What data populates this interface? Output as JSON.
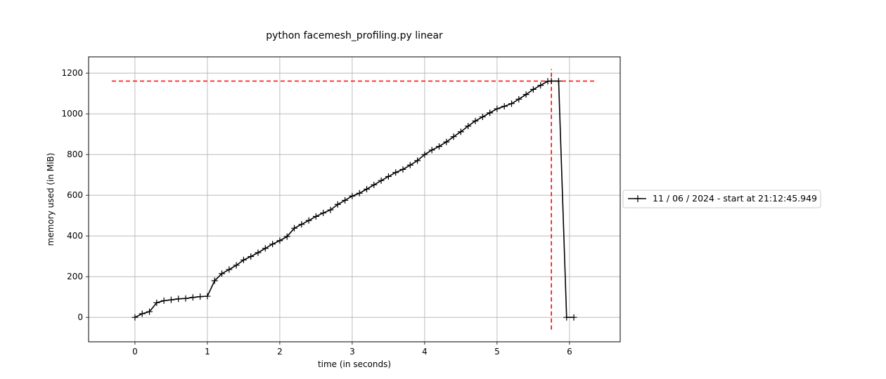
{
  "chart_data": {
    "type": "line",
    "title": "python facemesh_profiling.py linear",
    "xlabel": "time (in seconds)",
    "ylabel": "memory used (in MiB)",
    "xlim": [
      -0.64,
      6.7
    ],
    "ylim": [
      -120,
      1280
    ],
    "xticks": [
      0,
      1,
      2,
      3,
      4,
      5,
      6
    ],
    "yticks": [
      0,
      200,
      400,
      600,
      800,
      1000,
      1200
    ],
    "grid": true,
    "legend_position": "right",
    "series": [
      {
        "name": "11 / 06 / 2024 - start at 21:12:45.949",
        "color": "#000000",
        "marker": "plus",
        "x": [
          0.0,
          0.1,
          0.2,
          0.3,
          0.4,
          0.5,
          0.6,
          0.7,
          0.8,
          0.9,
          1.0,
          1.1,
          1.2,
          1.3,
          1.4,
          1.5,
          1.6,
          1.7,
          1.8,
          1.9,
          2.0,
          2.1,
          2.2,
          2.3,
          2.4,
          2.5,
          2.6,
          2.7,
          2.8,
          2.9,
          3.0,
          3.1,
          3.2,
          3.3,
          3.4,
          3.5,
          3.6,
          3.7,
          3.8,
          3.9,
          4.0,
          4.1,
          4.2,
          4.3,
          4.4,
          4.5,
          4.6,
          4.7,
          4.8,
          4.9,
          5.0,
          5.1,
          5.2,
          5.3,
          5.4,
          5.5,
          5.6,
          5.7,
          5.75,
          5.85,
          5.96,
          6.06
        ],
        "y": [
          0,
          18,
          28,
          72,
          82,
          86,
          91,
          93,
          98,
          102,
          104,
          180,
          215,
          235,
          256,
          282,
          299,
          318,
          339,
          360,
          377,
          397,
          438,
          457,
          476,
          496,
          513,
          528,
          555,
          575,
          596,
          610,
          630,
          651,
          672,
          692,
          712,
          727,
          748,
          770,
          800,
          822,
          840,
          862,
          888,
          912,
          940,
          965,
          985,
          1005,
          1025,
          1037,
          1050,
          1072,
          1095,
          1120,
          1140,
          1160,
          1161,
          1161,
          0,
          0
        ]
      }
    ],
    "reference_lines": [
      {
        "orientation": "horizontal",
        "y": 1161,
        "x_range": [
          -0.32,
          6.38
        ],
        "color": "#ff0000",
        "style": "dashed"
      },
      {
        "orientation": "vertical",
        "x": 5.75,
        "y_range": [
          -60,
          1220
        ],
        "color": "#ff0000",
        "style": "dashed"
      }
    ]
  }
}
